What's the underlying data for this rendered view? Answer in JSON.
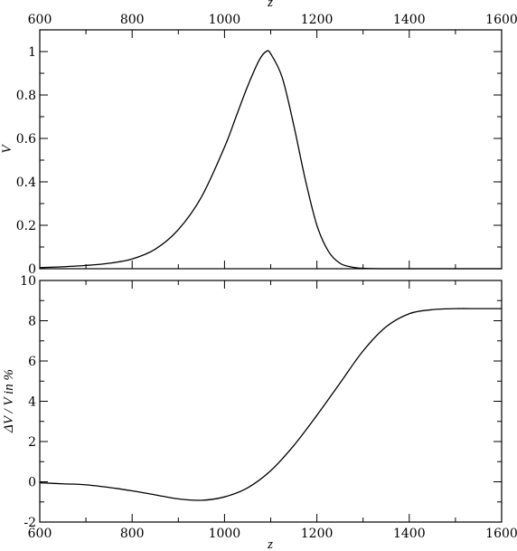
{
  "chart_data": [
    {
      "type": "line",
      "xlabel": "z",
      "ylabel": "V",
      "xlim": [
        600,
        1600
      ],
      "ylim": [
        0,
        1.1
      ],
      "x_ticks": [
        600,
        800,
        1000,
        1200,
        1400,
        1600
      ],
      "x_tick_labels_top": [
        "600",
        "800",
        "1000",
        "1200",
        "1400",
        "1600"
      ],
      "y_ticks": [
        0,
        0.2,
        0.4,
        0.6,
        0.8,
        1
      ],
      "y_tick_labels": [
        "0",
        "0.2",
        "0.4",
        "0.6",
        "0.8",
        "1"
      ],
      "grid": false,
      "series": [
        {
          "x": [
            600,
            650,
            700,
            750,
            800,
            850,
            900,
            950,
            1000,
            1025,
            1050,
            1075,
            1090,
            1100,
            1125,
            1150,
            1175,
            1200,
            1225,
            1250,
            1275,
            1300,
            1350,
            1400,
            1500,
            1600
          ],
          "values": [
            0.005,
            0.009,
            0.015,
            0.025,
            0.045,
            0.09,
            0.18,
            0.33,
            0.56,
            0.7,
            0.84,
            0.96,
            1.0,
            0.99,
            0.88,
            0.66,
            0.41,
            0.2,
            0.08,
            0.025,
            0.008,
            0.002,
            0.0,
            0.0,
            0.0,
            0.0
          ]
        }
      ]
    },
    {
      "type": "line",
      "xlabel": "z",
      "ylabel": "ΔV / V in %",
      "xlim": [
        600,
        1600
      ],
      "ylim": [
        -2,
        10
      ],
      "x_ticks": [
        600,
        800,
        1000,
        1200,
        1400,
        1600
      ],
      "x_tick_labels": [
        "600",
        "800",
        "1000",
        "1200",
        "1400",
        "1600"
      ],
      "y_ticks": [
        -2,
        0,
        2,
        4,
        6,
        8,
        10
      ],
      "y_tick_labels": [
        "-2",
        "0",
        "2",
        "4",
        "6",
        "8",
        "10"
      ],
      "grid": false,
      "series": [
        {
          "x": [
            600,
            650,
            700,
            750,
            800,
            850,
            900,
            950,
            1000,
            1050,
            1100,
            1150,
            1200,
            1250,
            1300,
            1350,
            1400,
            1450,
            1500,
            1550,
            1600
          ],
          "values": [
            -0.05,
            -0.1,
            -0.15,
            -0.28,
            -0.45,
            -0.65,
            -0.85,
            -0.92,
            -0.75,
            -0.3,
            0.55,
            1.8,
            3.3,
            4.9,
            6.5,
            7.7,
            8.35,
            8.55,
            8.6,
            8.6,
            8.6
          ]
        }
      ]
    }
  ]
}
